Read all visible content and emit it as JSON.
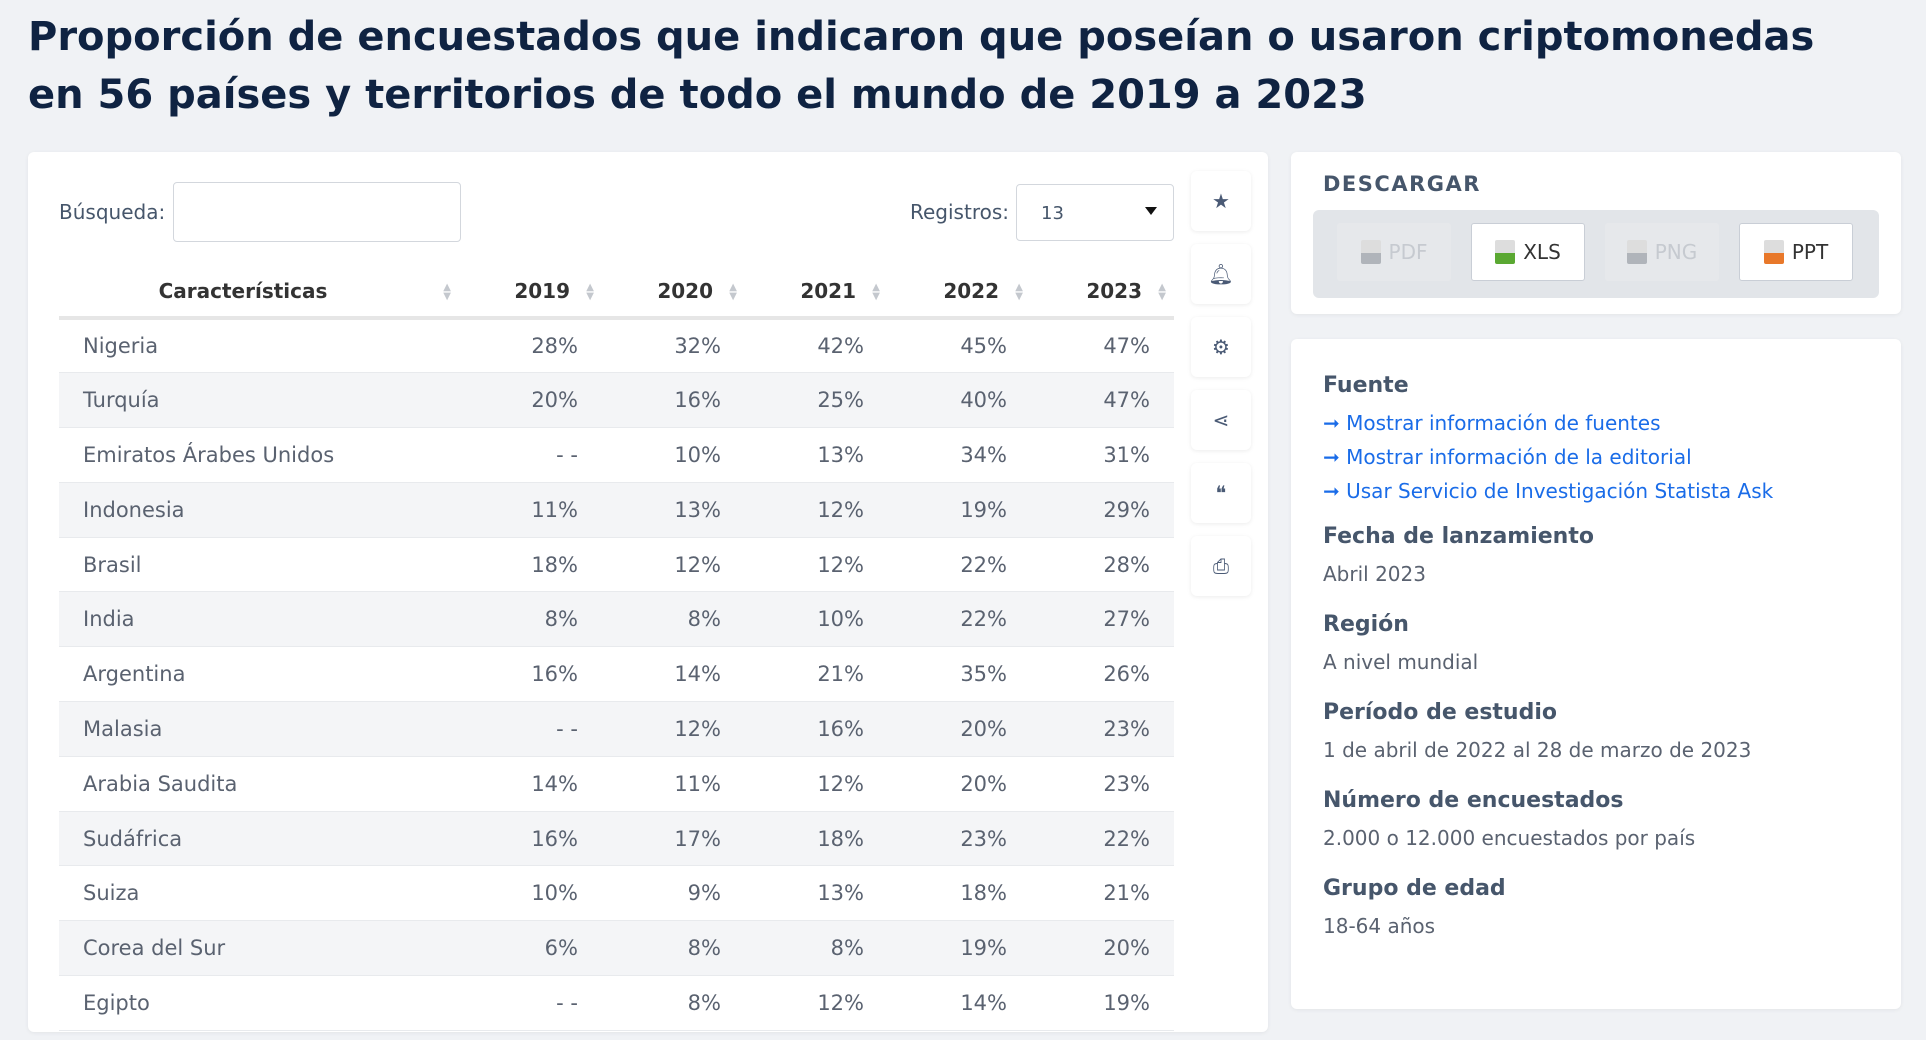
{
  "title": "Proporción de encuestados que indicaron que poseían o usaron criptomonedas en 56 países y territorios de todo el mundo de 2019 a 2023",
  "search": {
    "label": "Búsqueda:",
    "value": ""
  },
  "records": {
    "label": "Registros:",
    "value": "13"
  },
  "table": {
    "headers": [
      "Características",
      "2019",
      "2020",
      "2021",
      "2022",
      "2023"
    ],
    "rows": [
      [
        "Nigeria",
        "28%",
        "32%",
        "42%",
        "45%",
        "47%"
      ],
      [
        "Turquía",
        "20%",
        "16%",
        "25%",
        "40%",
        "47%"
      ],
      [
        "Emiratos Árabes Unidos",
        "- -",
        "10%",
        "13%",
        "34%",
        "31%"
      ],
      [
        "Indonesia",
        "11%",
        "13%",
        "12%",
        "19%",
        "29%"
      ],
      [
        "Brasil",
        "18%",
        "12%",
        "12%",
        "22%",
        "28%"
      ],
      [
        "India",
        "8%",
        "8%",
        "10%",
        "22%",
        "27%"
      ],
      [
        "Argentina",
        "16%",
        "14%",
        "21%",
        "35%",
        "26%"
      ],
      [
        "Malasia",
        "- -",
        "12%",
        "16%",
        "20%",
        "23%"
      ],
      [
        "Arabia Saudita",
        "14%",
        "11%",
        "12%",
        "20%",
        "23%"
      ],
      [
        "Sudáfrica",
        "16%",
        "17%",
        "18%",
        "23%",
        "22%"
      ],
      [
        "Suiza",
        "10%",
        "9%",
        "13%",
        "18%",
        "21%"
      ],
      [
        "Corea del Sur",
        "6%",
        "8%",
        "8%",
        "19%",
        "20%"
      ],
      [
        "Egipto",
        "- -",
        "8%",
        "12%",
        "14%",
        "19%"
      ]
    ]
  },
  "tools": [
    "star-icon",
    "bell-icon",
    "gear-icon",
    "share-icon",
    "quote-icon",
    "print-icon"
  ],
  "download": {
    "title": "DESCARGAR",
    "buttons": [
      {
        "label": "PDF",
        "enabled": false,
        "color": "#b0b4ba"
      },
      {
        "label": "XLS",
        "enabled": true,
        "color": "#5aa832"
      },
      {
        "label": "PNG",
        "enabled": false,
        "color": "#b0b4ba"
      },
      {
        "label": "PPT",
        "enabled": true,
        "color": "#e8782a"
      }
    ]
  },
  "info": {
    "source_title": "Fuente",
    "links": [
      "Mostrar información de fuentes",
      "Mostrar información de la editorial",
      "Usar Servicio de Investigación Statista Ask"
    ],
    "fields": [
      {
        "label": "Fecha de lanzamiento",
        "value": "Abril 2023"
      },
      {
        "label": "Región",
        "value": "A nivel mundial"
      },
      {
        "label": "Período de estudio",
        "value": "1 de abril de 2022 al 28 de marzo de 2023"
      },
      {
        "label": "Número de encuestados",
        "value": "2.000 o 12.000 encuestados por país"
      },
      {
        "label": "Grupo de edad",
        "value": "18-64 años"
      }
    ]
  }
}
